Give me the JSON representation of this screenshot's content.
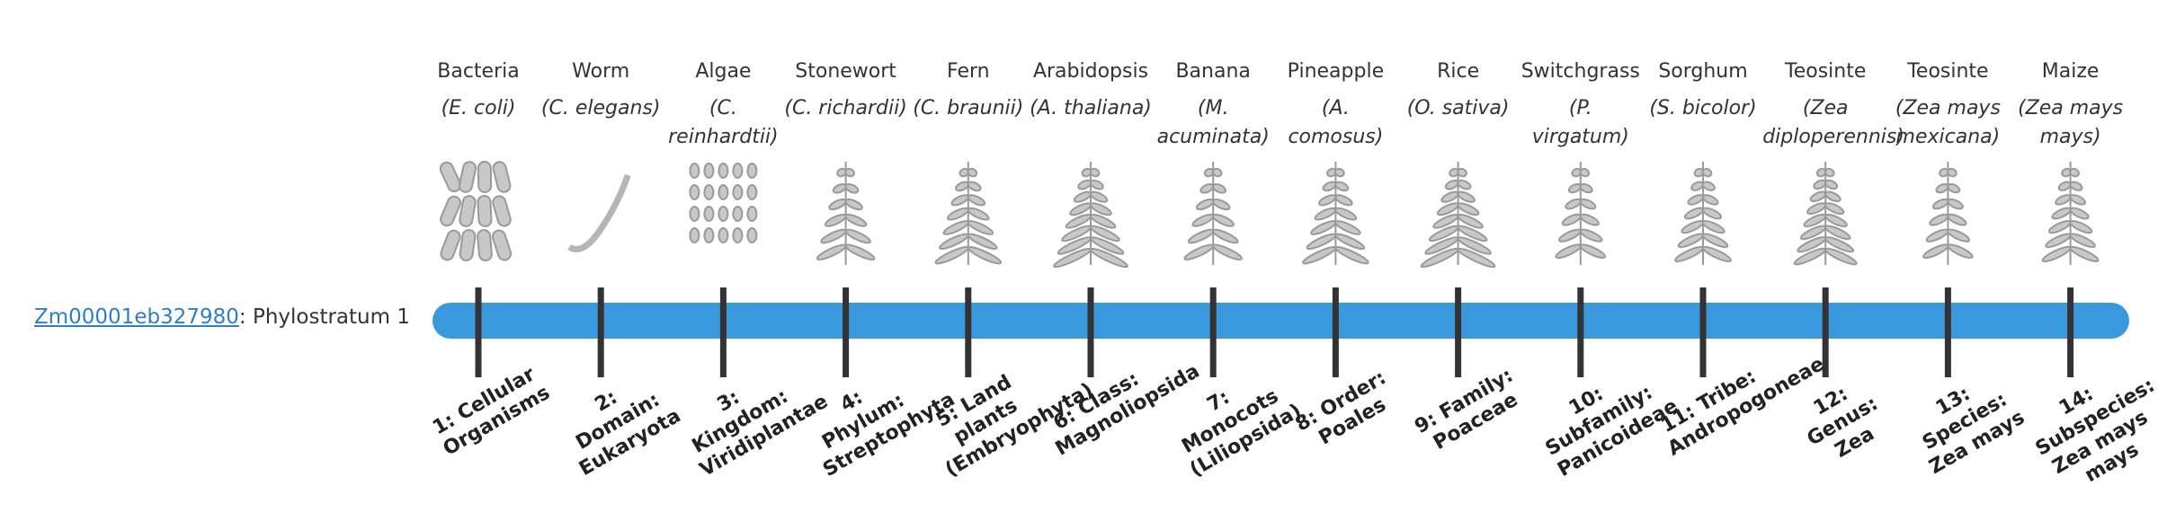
{
  "gene": {
    "id": "Zm00001eb327980",
    "label": ": Phylostratum 1"
  },
  "strata": [
    {
      "name": "Bacteria",
      "species": "(E. coli)",
      "rank": "1: Cellular Organisms"
    },
    {
      "name": "Worm",
      "species": "(C. elegans)",
      "rank": "2: Domain: Eukaryota"
    },
    {
      "name": "Algae",
      "species": "(C. reinhardtii)",
      "rank": "3: Kingdom: Viridiplantae"
    },
    {
      "name": "Stonewort",
      "species": "(C. richardii)",
      "rank": "4: Phylum: Streptophyta"
    },
    {
      "name": "Fern",
      "species": "(C. braunii)",
      "rank": "5: Land plants (Embryophyta)"
    },
    {
      "name": "Arabidopsis",
      "species": "(A. thaliana)",
      "rank": "6: Class: Magnoliopsida"
    },
    {
      "name": "Banana",
      "species": "(M. acuminata)",
      "rank": "7: Monocots (Liliopsida)"
    },
    {
      "name": "Pineapple",
      "species": "(A. comosus)",
      "rank": "8: Order: Poales"
    },
    {
      "name": "Rice",
      "species": "(O. sativa)",
      "rank": "9: Family: Poaceae"
    },
    {
      "name": "Switchgrass",
      "species": "(P. virgatum)",
      "rank": "10: Subfamily: Panicoideae"
    },
    {
      "name": "Sorghum",
      "species": "(S. bicolor)",
      "rank": "11: Tribe: Andropogoneae"
    },
    {
      "name": "Teosinte",
      "species": "(Zea diploperennis)",
      "rank": "12: Genus: Zea"
    },
    {
      "name": "Teosinte",
      "species": "(Zea mays mexicana)",
      "rank": "13: Species: Zea mays"
    },
    {
      "name": "Maize",
      "species": "(Zea mays mays)",
      "rank": "14: Subspecies: Zea mays mays"
    }
  ]
}
